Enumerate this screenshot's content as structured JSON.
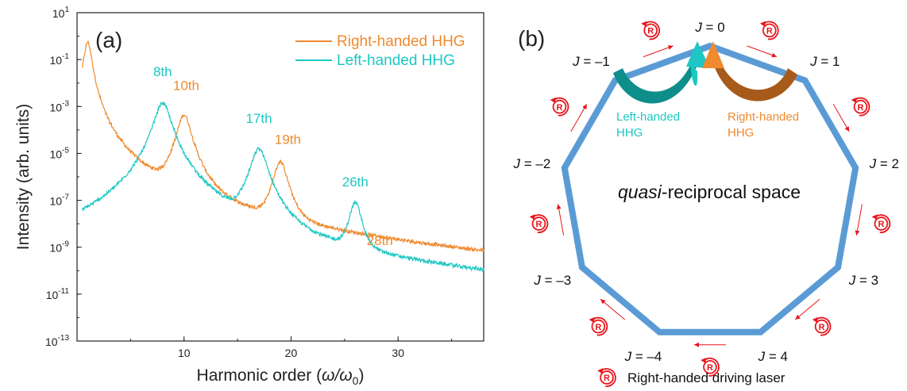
{
  "colors": {
    "right": "#EF8A2E",
    "left": "#1EC7C3",
    "polygon": "#5B9BD5",
    "laser": "#E8151B",
    "axis": "#222222",
    "arc_left_dark": "#0E8E8A",
    "arc_right_dark": "#A85A1A"
  },
  "panel_a": {
    "label": "(a)",
    "chart_data": {
      "type": "line",
      "xlabel_main": "Harmonic order (",
      "xlabel_omega": "ω/ω",
      "xlabel_sub": "0",
      "xlabel_close": ")",
      "ylabel": "Intensity (arb. units)",
      "xlim": [
        0,
        38
      ],
      "ylim_log10": [
        -13,
        1
      ],
      "log_y": true,
      "x_ticks": [
        {
          "value": 10,
          "label": "10"
        },
        {
          "value": 20,
          "label": "20"
        },
        {
          "value": 30,
          "label": "30"
        }
      ],
      "y_ticks": [
        {
          "exp": 1,
          "base": "10",
          "sup": "1"
        },
        {
          "exp": -1,
          "base": "10",
          "sup": "-1"
        },
        {
          "exp": -3,
          "base": "10",
          "sup": "-3"
        },
        {
          "exp": -5,
          "base": "10",
          "sup": "-5"
        },
        {
          "exp": -7,
          "base": "10",
          "sup": "-7"
        },
        {
          "exp": -9,
          "base": "10",
          "sup": "-9"
        },
        {
          "exp": -11,
          "base": "10",
          "sup": "-11"
        },
        {
          "exp": -13,
          "base": "10",
          "sup": "-13"
        }
      ],
      "series": [
        {
          "name": "Right-handed HHG",
          "color": "#EF8A2E",
          "baseline_log10": -11.3,
          "noise_log10": 0.45,
          "peaks": [
            {
              "x": 1,
              "log10": -0.25,
              "width": 0.35
            },
            {
              "x": 8,
              "log10": -8.1,
              "width": 0.45
            },
            {
              "x": 10,
              "log10": -3.35,
              "width": 0.6
            },
            {
              "x": 19,
              "log10": -5.35,
              "width": 0.6
            },
            {
              "x": 28,
              "log10": -9.8,
              "width": 0.5
            }
          ]
        },
        {
          "name": "Left-handed HHG",
          "color": "#1EC7C3",
          "baseline_log10": -10.9,
          "noise_log10": 0.4,
          "peaks": [
            {
              "x": 8,
              "log10": -2.85,
              "width": 0.7
            },
            {
              "x": 17,
              "log10": -4.8,
              "width": 0.7
            },
            {
              "x": 26,
              "log10": -7.1,
              "width": 0.55
            }
          ]
        }
      ],
      "annotations": [
        {
          "text": "8th",
          "x": 8,
          "log10": -1.7,
          "color": "#1EC7C3"
        },
        {
          "text": "10th",
          "x": 10.2,
          "log10": -2.3,
          "color": "#EF8A2E"
        },
        {
          "text": "17th",
          "x": 17,
          "log10": -3.7,
          "color": "#1EC7C3"
        },
        {
          "text": "19th",
          "x": 19.7,
          "log10": -4.6,
          "color": "#EF8A2E"
        },
        {
          "text": "26th",
          "x": 26,
          "log10": -6.4,
          "color": "#1EC7C3"
        },
        {
          "text": "28th",
          "x": 28.3,
          "log10": -8.9,
          "color": "#EF8A2E"
        }
      ],
      "legend_position": "top-right"
    }
  },
  "panel_b": {
    "label": "(b)",
    "center_text_italic": "quasi",
    "center_text_rest": "-reciprocal space",
    "j_prefix": "J",
    "j_labels": [
      "= 0",
      "= 1",
      "= 2",
      "= 3",
      "= 4",
      "= –4",
      "= –3",
      "= –2",
      "= –1"
    ],
    "left_hhg_label": [
      "Left-handed",
      "HHG"
    ],
    "right_hhg_label": [
      "Right-handed",
      "HHG"
    ],
    "laser_symbol": "R",
    "legend_text": "Right-handed driving laser"
  }
}
